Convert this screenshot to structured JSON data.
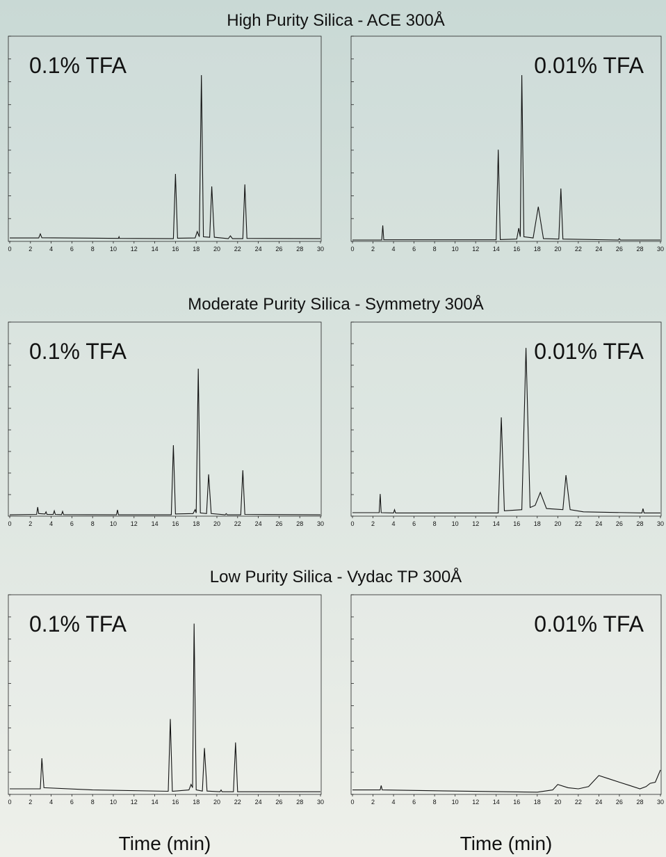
{
  "sections": [
    "High Purity Silica - ACE 300Å",
    "Moderate Purity Silica - Symmetry 300Å",
    "Low Purity Silica - Vydac TP 300Å"
  ],
  "chart_data": [
    {
      "type": "line",
      "annotation": "0.1% TFA",
      "color": "#111111",
      "x": [
        0,
        2.8,
        2.95,
        3.1,
        10.5,
        10.55,
        10.6,
        15.8,
        16.0,
        16.2,
        17.9,
        18.1,
        18.3,
        18.5,
        18.7,
        19.3,
        19.5,
        19.75,
        21.1,
        21.3,
        21.5,
        22.5,
        22.7,
        22.9,
        30
      ],
      "values": [
        0.15,
        0.15,
        0.33,
        0.16,
        0.13,
        0.2,
        0.13,
        0.12,
        2.96,
        0.14,
        0.15,
        0.43,
        0.2,
        7.29,
        0.2,
        0.18,
        2.41,
        0.18,
        0.12,
        0.24,
        0.12,
        0.12,
        2.5,
        0.13,
        0.12
      ],
      "xlim": [
        0,
        30
      ],
      "xticks": [
        0,
        2,
        4,
        6,
        8,
        10,
        12,
        14,
        16,
        18,
        20,
        22,
        24,
        26,
        28,
        30
      ],
      "ylim": [
        0,
        9
      ],
      "yticks": [
        0,
        1,
        2,
        3,
        4,
        5,
        6,
        7,
        8,
        9
      ]
    },
    {
      "type": "line",
      "annotation": "0.01% TFA",
      "color": "#111111",
      "x": [
        0,
        2.85,
        2.95,
        3.05,
        14.0,
        14.2,
        14.4,
        16.0,
        16.2,
        16.35,
        16.5,
        16.7,
        17.6,
        18.1,
        18.6,
        20.1,
        20.3,
        20.5,
        25.9,
        26.0,
        26.1,
        30
      ],
      "values": [
        0.06,
        0.06,
        0.7,
        0.07,
        0.07,
        4.02,
        0.08,
        0.1,
        0.58,
        0.2,
        7.29,
        0.2,
        0.15,
        1.52,
        0.12,
        0.1,
        2.32,
        0.1,
        0.06,
        0.12,
        0.06,
        0.06
      ],
      "xlim": [
        0,
        30
      ],
      "xticks": [
        0,
        2,
        4,
        6,
        8,
        10,
        12,
        14,
        16,
        18,
        20,
        22,
        24,
        26,
        28,
        30
      ],
      "ylim": [
        0,
        9
      ],
      "yticks": [
        0,
        1,
        2,
        3,
        4,
        5,
        6,
        7,
        8,
        9
      ]
    },
    {
      "type": "line",
      "annotation": "0.1% TFA",
      "color": "#111111",
      "x": [
        0,
        2.6,
        2.7,
        2.8,
        3.4,
        3.5,
        3.6,
        4.2,
        4.3,
        4.4,
        5.0,
        5.1,
        5.2,
        10.3,
        10.4,
        10.5,
        15.6,
        15.8,
        16.0,
        17.7,
        17.9,
        18.0,
        18.2,
        18.4,
        19.0,
        19.2,
        19.45,
        20.8,
        20.9,
        21.0,
        22.3,
        22.5,
        22.7,
        30
      ],
      "values": [
        0.06,
        0.08,
        0.42,
        0.12,
        0.1,
        0.2,
        0.08,
        0.08,
        0.25,
        0.08,
        0.07,
        0.22,
        0.07,
        0.06,
        0.29,
        0.06,
        0.06,
        3.29,
        0.1,
        0.12,
        0.3,
        0.15,
        6.84,
        0.15,
        0.12,
        1.94,
        0.12,
        0.06,
        0.12,
        0.06,
        0.06,
        2.13,
        0.08,
        0.06
      ],
      "xlim": [
        0,
        30
      ],
      "xticks": [
        0,
        2,
        4,
        6,
        8,
        10,
        12,
        14,
        16,
        18,
        20,
        22,
        24,
        26,
        28,
        30
      ],
      "ylim": [
        0,
        9
      ],
      "yticks": [
        0,
        1,
        2,
        3,
        4,
        5,
        6,
        7,
        8,
        9
      ]
    },
    {
      "type": "line",
      "annotation": "0.01% TFA",
      "color": "#111111",
      "x": [
        0,
        2.6,
        2.7,
        2.8,
        4.0,
        4.1,
        4.2,
        14.2,
        14.5,
        14.8,
        16.5,
        16.9,
        17.3,
        17.8,
        18.3,
        18.9,
        20.5,
        20.8,
        21.2,
        22.5,
        28.2,
        28.3,
        28.4,
        30
      ],
      "values": [
        0.16,
        0.16,
        1.03,
        0.16,
        0.15,
        0.3,
        0.15,
        0.15,
        4.58,
        0.25,
        0.3,
        7.8,
        0.4,
        0.5,
        1.1,
        0.35,
        0.3,
        1.9,
        0.3,
        0.2,
        0.15,
        0.35,
        0.15,
        0.15
      ],
      "xlim": [
        0,
        30
      ],
      "xticks": [
        0,
        2,
        4,
        6,
        8,
        10,
        12,
        14,
        16,
        18,
        20,
        22,
        24,
        26,
        28,
        30
      ],
      "ylim": [
        0,
        9
      ],
      "yticks": [
        0,
        1,
        2,
        3,
        4,
        5,
        6,
        7,
        8,
        9
      ]
    },
    {
      "type": "line",
      "annotation": "0.1% TFA",
      "color": "#111111",
      "xlabel": "Time (min)",
      "x": [
        0,
        2.95,
        3.1,
        3.3,
        8,
        15.3,
        15.5,
        15.7,
        17.3,
        17.5,
        17.65,
        17.8,
        18.0,
        18.6,
        18.8,
        19.05,
        20.3,
        20.4,
        20.5,
        21.6,
        21.8,
        22.0,
        30
      ],
      "values": [
        0.25,
        0.25,
        1.63,
        0.3,
        0.2,
        0.14,
        3.4,
        0.14,
        0.2,
        0.45,
        0.3,
        7.7,
        0.2,
        0.15,
        2.09,
        0.15,
        0.12,
        0.2,
        0.12,
        0.12,
        2.34,
        0.12,
        0.12
      ],
      "xlim": [
        0,
        30
      ],
      "xticks": [
        0,
        2,
        4,
        6,
        8,
        10,
        12,
        14,
        16,
        18,
        20,
        22,
        24,
        26,
        28,
        30
      ],
      "ylim": [
        0,
        9
      ],
      "yticks": [
        0,
        1,
        2,
        3,
        4,
        5,
        6,
        7,
        8,
        9
      ]
    },
    {
      "type": "line",
      "annotation": "0.01% TFA",
      "color": "#111111",
      "xlabel": "Time (min)",
      "x": [
        0,
        2.7,
        2.8,
        2.9,
        10,
        18,
        19.5,
        20,
        21,
        22,
        23,
        24,
        25,
        26,
        27,
        28,
        28.6,
        29,
        29.5,
        30
      ],
      "values": [
        0.2,
        0.2,
        0.4,
        0.2,
        0.15,
        0.1,
        0.2,
        0.45,
        0.3,
        0.25,
        0.35,
        0.85,
        0.7,
        0.55,
        0.4,
        0.25,
        0.35,
        0.5,
        0.55,
        1.1
      ],
      "xlim": [
        0,
        30
      ],
      "xticks": [
        0,
        2,
        4,
        6,
        8,
        10,
        12,
        14,
        16,
        18,
        20,
        22,
        24,
        26,
        28,
        30
      ],
      "ylim": [
        0,
        9
      ],
      "yticks": [
        0,
        1,
        2,
        3,
        4,
        5,
        6,
        7,
        8,
        9
      ]
    }
  ]
}
